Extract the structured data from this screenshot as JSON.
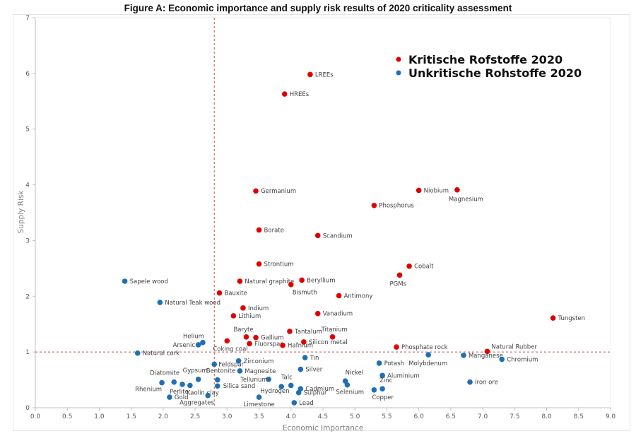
{
  "chart_data": {
    "type": "scatter",
    "title": "Figure A: Economic importance and supply risk results of 2020 criticality assessment",
    "xlabel": "Economic Importance",
    "ylabel": "Supply Risk",
    "xlim": [
      0,
      9
    ],
    "ylim": [
      0,
      7
    ],
    "xticks": [
      "0.0",
      "0.5",
      "1.0",
      "1.5",
      "2.0",
      "2.5",
      "3.0",
      "3.5",
      "4.0",
      "4.5",
      "5.0",
      "5.5",
      "6.0",
      "6.5",
      "7.0",
      "7.5",
      "8.0",
      "8.5",
      "9.0"
    ],
    "yticks": [
      "0",
      "1",
      "2",
      "3",
      "4",
      "5",
      "6",
      "7"
    ],
    "grid": false,
    "thresholds": {
      "x": 2.8,
      "y": 1.0,
      "color": "#c0504d"
    },
    "legend": {
      "position": "top-right"
    },
    "series": [
      {
        "name": "Kritische Rofstoffe 2020",
        "color": "#e00000",
        "points": [
          {
            "label": "LREEs",
            "x": 4.3,
            "y": 5.98
          },
          {
            "label": "HREEs",
            "x": 3.9,
            "y": 5.63
          },
          {
            "label": "Germanium",
            "x": 3.45,
            "y": 3.89
          },
          {
            "label": "Niobium",
            "x": 6.0,
            "y": 3.9
          },
          {
            "label": "Magnesium",
            "x": 6.6,
            "y": 3.91
          },
          {
            "label": "Phosphorus",
            "x": 5.3,
            "y": 3.63
          },
          {
            "label": "Borate",
            "x": 3.5,
            "y": 3.19
          },
          {
            "label": "Scandium",
            "x": 4.42,
            "y": 3.09
          },
          {
            "label": "Strontium",
            "x": 3.5,
            "y": 2.58
          },
          {
            "label": "Cobalt",
            "x": 5.85,
            "y": 2.54
          },
          {
            "label": "PGMs",
            "x": 5.7,
            "y": 2.38
          },
          {
            "label": "Natural graphite",
            "x": 3.2,
            "y": 2.27
          },
          {
            "label": "Beryllium",
            "x": 4.17,
            "y": 2.29
          },
          {
            "label": "Bismuth",
            "x": 4.0,
            "y": 2.21
          },
          {
            "label": "Bauxite",
            "x": 2.88,
            "y": 2.06
          },
          {
            "label": "Antimony",
            "x": 4.75,
            "y": 2.01
          },
          {
            "label": "Indium",
            "x": 3.25,
            "y": 1.79
          },
          {
            "label": "Vanadium",
            "x": 4.42,
            "y": 1.69
          },
          {
            "label": "Lithium",
            "x": 3.1,
            "y": 1.65
          },
          {
            "label": "Tungsten",
            "x": 8.1,
            "y": 1.61
          },
          {
            "label": "Tantalum",
            "x": 3.98,
            "y": 1.37
          },
          {
            "label": "Titanium",
            "x": 4.65,
            "y": 1.27
          },
          {
            "label": "Baryte",
            "x": 3.3,
            "y": 1.27
          },
          {
            "label": "Gallium",
            "x": 3.45,
            "y": 1.26
          },
          {
            "label": "Coking coal",
            "x": 3.0,
            "y": 1.2
          },
          {
            "label": "Silicon metal",
            "x": 4.2,
            "y": 1.18
          },
          {
            "label": "Fluorspar",
            "x": 3.35,
            "y": 1.15
          },
          {
            "label": "Hafnium",
            "x": 3.87,
            "y": 1.12
          },
          {
            "label": "Phosphate rock",
            "x": 5.65,
            "y": 1.09
          },
          {
            "label": "Natural Rubber",
            "x": 7.07,
            "y": 1.01
          }
        ]
      },
      {
        "name": "Unkritische Rohstoffe 2020",
        "color": "#1f6fb5",
        "points": [
          {
            "label": "Sapele wood",
            "x": 1.4,
            "y": 2.27
          },
          {
            "label": "Natural Teak wood",
            "x": 1.95,
            "y": 1.89
          },
          {
            "label": "Helium",
            "x": 2.62,
            "y": 1.17
          },
          {
            "label": "Arsenic",
            "x": 2.55,
            "y": 1.13
          },
          {
            "label": "Natural cork",
            "x": 1.6,
            "y": 0.98
          },
          {
            "label": "Feldspar",
            "x": 2.8,
            "y": 0.78
          },
          {
            "label": "Zirconium",
            "x": 3.18,
            "y": 0.84
          },
          {
            "label": "Tin",
            "x": 4.22,
            "y": 0.9
          },
          {
            "label": "Silver",
            "x": 4.15,
            "y": 0.69
          },
          {
            "label": "Magnesite",
            "x": 3.2,
            "y": 0.66
          },
          {
            "label": "Bentonite",
            "x": 2.85,
            "y": 0.5
          },
          {
            "label": "Gypsum",
            "x": 2.55,
            "y": 0.51
          },
          {
            "label": "Tellurium",
            "x": 3.65,
            "y": 0.51
          },
          {
            "label": "Diatomite",
            "x": 2.17,
            "y": 0.46
          },
          {
            "label": "Rhenium",
            "x": 1.98,
            "y": 0.45
          },
          {
            "label": "Perlite",
            "x": 2.3,
            "y": 0.42
          },
          {
            "label": "Kaolin clay",
            "x": 2.42,
            "y": 0.4
          },
          {
            "label": "Silica sand",
            "x": 2.85,
            "y": 0.39
          },
          {
            "label": "Talc",
            "x": 4.0,
            "y": 0.4
          },
          {
            "label": "Hydrogen",
            "x": 3.85,
            "y": 0.38
          },
          {
            "label": "Cadmium",
            "x": 4.15,
            "y": 0.34
          },
          {
            "label": "Sulphur",
            "x": 4.12,
            "y": 0.27
          },
          {
            "label": "Gold",
            "x": 2.1,
            "y": 0.19
          },
          {
            "label": "Aggregates",
            "x": 2.7,
            "y": 0.22
          },
          {
            "label": "Limestone",
            "x": 3.5,
            "y": 0.19
          },
          {
            "label": "Lead",
            "x": 4.05,
            "y": 0.09
          },
          {
            "label": "Nickel",
            "x": 4.85,
            "y": 0.48
          },
          {
            "label": "Selenium",
            "x": 4.88,
            "y": 0.41
          },
          {
            "label": "Potash",
            "x": 5.38,
            "y": 0.8
          },
          {
            "label": "Aluminium",
            "x": 5.43,
            "y": 0.58
          },
          {
            "label": "Zinc",
            "x": 5.43,
            "y": 0.34
          },
          {
            "label": "Copper",
            "x": 5.3,
            "y": 0.32
          },
          {
            "label": "Molybdenum",
            "x": 6.15,
            "y": 0.95
          },
          {
            "label": "Manganese",
            "x": 6.7,
            "y": 0.94
          },
          {
            "label": "Chromium",
            "x": 7.3,
            "y": 0.87
          },
          {
            "label": "Iron ore",
            "x": 6.8,
            "y": 0.46
          }
        ]
      }
    ]
  }
}
